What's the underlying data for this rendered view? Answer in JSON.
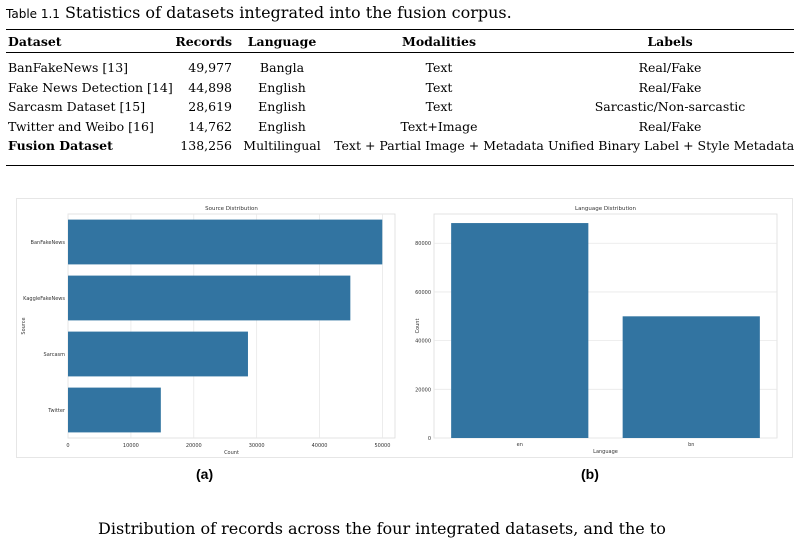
{
  "table": {
    "label": "Table 1.1",
    "caption": "Statistics of datasets integrated into the fusion corpus.",
    "headers": [
      "Dataset",
      "Records",
      "Language",
      "Modalities",
      "Labels"
    ],
    "rows": [
      [
        "BanFakeNews [13]",
        "49,977",
        "Bangla",
        "Text",
        "Real/Fake"
      ],
      [
        "Fake News Detection [14]",
        "44,898",
        "English",
        "Text",
        "Real/Fake"
      ],
      [
        "Sarcasm Dataset [15]",
        "28,619",
        "English",
        "Text",
        "Sarcastic/Non-sarcastic"
      ],
      [
        "Twitter and Weibo [16]",
        "14,762",
        "English",
        "Text+Image",
        "Real/Fake"
      ],
      [
        "Fusion Dataset",
        "138,256",
        "Multilingual",
        "Text + Partial Image + Metadata",
        "Unified Binary Label + Style Metadata"
      ]
    ]
  },
  "figure": {
    "sublabel_a": "(a)",
    "sublabel_b": "(b)"
  },
  "chart_data": [
    {
      "type": "bar",
      "orientation": "horizontal",
      "title": "Source Distribution",
      "categories": [
        "BanFakeNews",
        "KaggleFakeNews",
        "Sarcasm",
        "Twitter"
      ],
      "values": [
        49977,
        44898,
        28619,
        14762
      ],
      "xlabel": "Count",
      "ylabel": "Source",
      "xlim": [
        0,
        52000
      ],
      "xticks": [
        0,
        10000,
        20000,
        30000,
        40000,
        50000
      ],
      "grid": true,
      "color": "#3274a1"
    },
    {
      "type": "bar",
      "title": "Language Distribution",
      "categories": [
        "en",
        "bn"
      ],
      "values": [
        88279,
        49977
      ],
      "xlabel": "Language",
      "ylabel": "Count",
      "ylim": [
        0,
        92000
      ],
      "yticks": [
        0,
        20000,
        40000,
        60000,
        80000
      ],
      "grid": true,
      "color": "#3274a1"
    }
  ],
  "paragraph": {
    "text": "Distribution of records across the four integrated datasets, and the to"
  }
}
